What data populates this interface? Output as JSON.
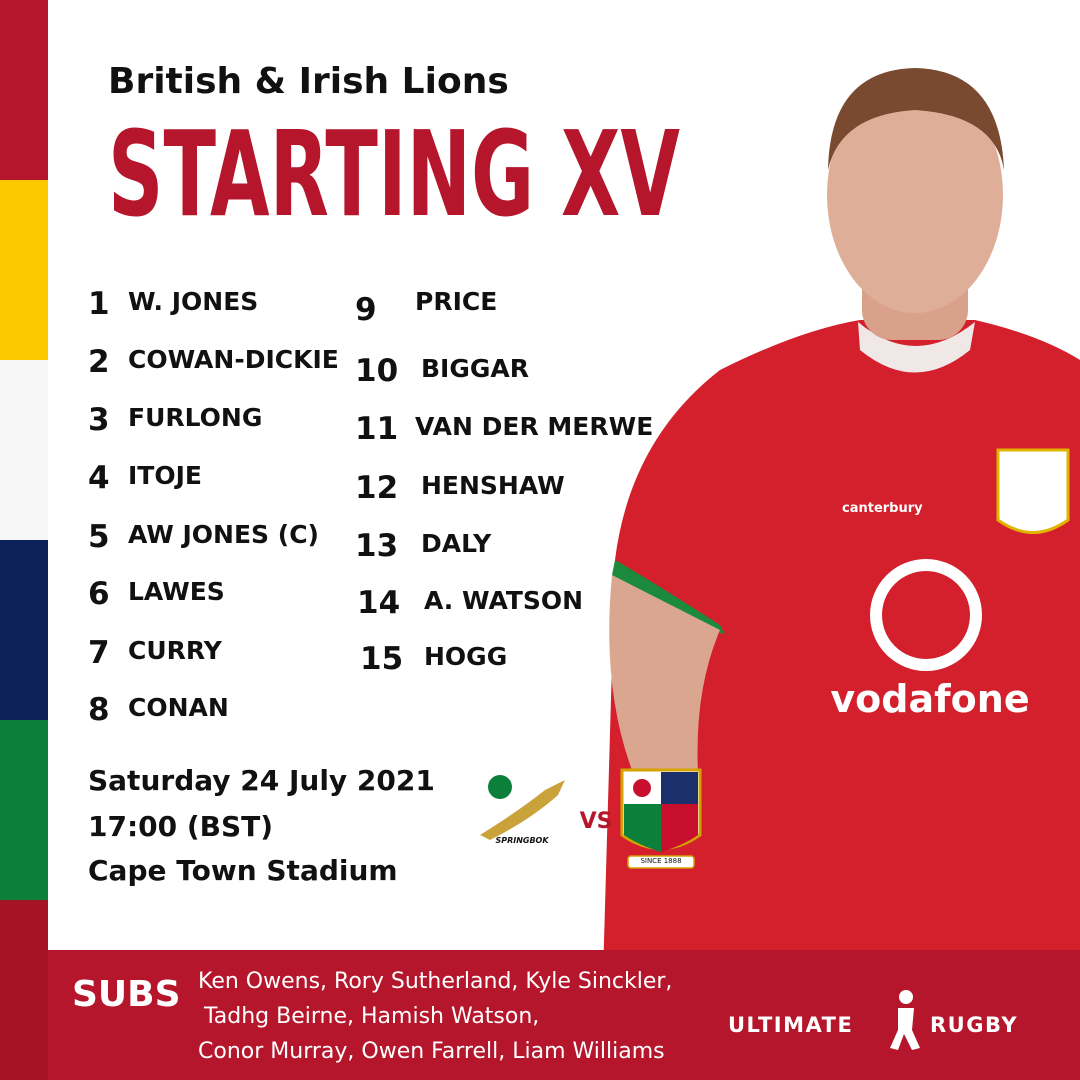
{
  "header": {
    "subtitle": "British & Irish Lions",
    "title": "STARTING XV"
  },
  "starting": [
    {
      "number": 1,
      "name": "W. JONES"
    },
    {
      "number": 2,
      "name": "COWAN-DICKIE"
    },
    {
      "number": 3,
      "name": "FURLONG"
    },
    {
      "number": 4,
      "name": "ITOJE"
    },
    {
      "number": 5,
      "name": "AW JONES (C)"
    },
    {
      "number": 6,
      "name": "LAWES"
    },
    {
      "number": 7,
      "name": "CURRY"
    },
    {
      "number": 8,
      "name": "CONAN"
    },
    {
      "number": 9,
      "name": "PRICE"
    },
    {
      "number": 10,
      "name": "BIGGAR"
    },
    {
      "number": 11,
      "name": "VAN DER MERWE"
    },
    {
      "number": 12,
      "name": "HENSHAW"
    },
    {
      "number": 13,
      "name": "DALY"
    },
    {
      "number": 14,
      "name": "A. WATSON"
    },
    {
      "number": 15,
      "name": "HOGG"
    }
  ],
  "match": {
    "date": "Saturday 24 July 2021",
    "time": "17:00 (BST)",
    "venue": "Cape Town Stadium"
  },
  "logos": {
    "home": "SPRINGBOK",
    "versus": "VS",
    "away": "SINCE 1888"
  },
  "jersey": {
    "maker": "canterbury",
    "sponsor": "vodafone"
  },
  "subs": {
    "label": "SUBS",
    "lines": [
      "Ken Owens, Rory Sutherland, Kyle Sinckler,",
      "Tadhg Beirne, Hamish Watson,",
      "Conor Murray, Owen Farrell, Liam Williams"
    ]
  },
  "brand": {
    "left": "ULTIMATE",
    "right": "RUGBY"
  }
}
